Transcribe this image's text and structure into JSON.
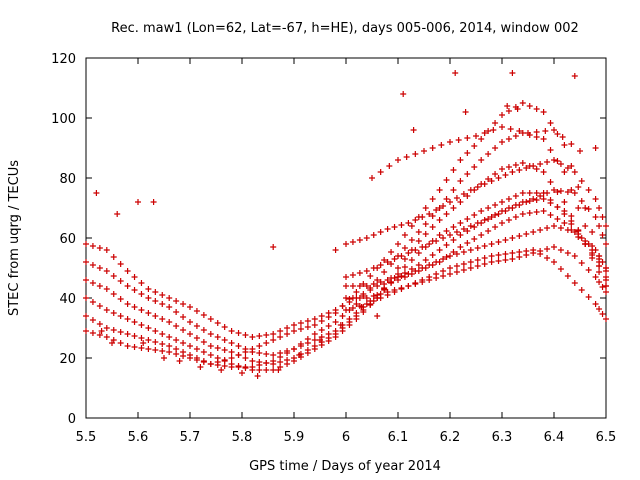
{
  "chart_data": {
    "type": "scatter",
    "title": "Rec. maw1 (Lon=62, Lat=-67, h=HE), days 005-006, 2014, window 002",
    "xlabel": "GPS time / Days of year 2014",
    "ylabel": "STEC from uqrg / TECUs",
    "xlim": [
      5.5,
      6.5
    ],
    "ylim": [
      0,
      120
    ],
    "xticks": [
      "5.5",
      "5.6",
      "5.7",
      "5.8",
      "5.9",
      "6",
      "6.1",
      "6.2",
      "6.3",
      "6.4",
      "6.5"
    ],
    "yticks": [
      "0",
      "20",
      "40",
      "60",
      "80",
      "100",
      "120"
    ],
    "marker": "+",
    "color": "#cc0000",
    "grid": false,
    "series": [
      {
        "tracks": [
          [
            [
              5.5,
              58
            ],
            [
              5.54,
              56
            ],
            [
              5.58,
              49
            ],
            [
              5.62,
              43
            ],
            [
              5.66,
              40
            ],
            [
              5.7,
              37
            ],
            [
              5.74,
              33
            ],
            [
              5.78,
              29
            ],
            [
              5.82,
              27
            ],
            [
              5.86,
              28
            ],
            [
              5.9,
              31
            ],
            [
              5.94,
              33
            ],
            [
              5.98,
              36
            ],
            [
              6.02,
              40
            ],
            [
              6.06,
              44
            ],
            [
              6.1,
              46
            ],
            [
              6.14,
              49
            ],
            [
              6.18,
              52
            ],
            [
              6.22,
              57
            ],
            [
              6.26,
              61
            ],
            [
              6.3,
              65
            ],
            [
              6.34,
              68
            ],
            [
              6.38,
              69
            ],
            [
              6.42,
              65
            ],
            [
              6.46,
              58
            ],
            [
              6.5,
              49
            ]
          ],
          [
            [
              5.5,
              52
            ],
            [
              5.54,
              49
            ],
            [
              5.58,
              44
            ],
            [
              5.62,
              40
            ],
            [
              5.66,
              37
            ],
            [
              5.7,
              32
            ],
            [
              5.74,
              28
            ],
            [
              5.78,
              25
            ],
            [
              5.82,
              22
            ],
            [
              5.86,
              21
            ],
            [
              5.9,
              23
            ],
            [
              5.94,
              26
            ],
            [
              5.98,
              29
            ],
            [
              6.02,
              35
            ],
            [
              6.06,
              41
            ],
            [
              6.1,
              47
            ],
            [
              6.14,
              51
            ],
            [
              6.18,
              56
            ],
            [
              6.22,
              61
            ],
            [
              6.26,
              65
            ],
            [
              6.3,
              69
            ],
            [
              6.34,
              72
            ],
            [
              6.38,
              73
            ],
            [
              6.42,
              69
            ],
            [
              6.46,
              59
            ],
            [
              6.5,
              50
            ]
          ],
          [
            [
              5.5,
              46
            ],
            [
              5.54,
              43
            ],
            [
              5.58,
              38
            ],
            [
              5.62,
              35
            ],
            [
              5.66,
              32
            ],
            [
              5.7,
              28
            ],
            [
              5.74,
              24
            ],
            [
              5.78,
              22
            ],
            [
              5.82,
              19
            ],
            [
              5.86,
              18
            ],
            [
              5.9,
              20
            ],
            [
              5.94,
              24
            ],
            [
              5.98,
              28
            ],
            [
              6.02,
              34
            ],
            [
              6.06,
              40
            ],
            [
              6.1,
              48
            ],
            [
              6.14,
              55
            ],
            [
              6.18,
              61
            ],
            [
              6.22,
              65
            ],
            [
              6.26,
              69
            ],
            [
              6.3,
              72
            ],
            [
              6.34,
              75
            ],
            [
              6.38,
              75
            ],
            [
              6.42,
              68
            ],
            [
              6.46,
              58
            ],
            [
              6.5,
              47
            ]
          ],
          [
            [
              5.5,
              40
            ],
            [
              5.54,
              36
            ],
            [
              5.58,
              33
            ],
            [
              5.62,
              30
            ],
            [
              5.66,
              27
            ],
            [
              5.7,
              24
            ],
            [
              5.74,
              21
            ],
            [
              5.78,
              18
            ],
            [
              5.82,
              16
            ],
            [
              5.86,
              16
            ],
            [
              5.9,
              19
            ],
            [
              5.94,
              23
            ],
            [
              5.98,
              27
            ],
            [
              6.02,
              33
            ],
            [
              6.06,
              40
            ],
            [
              6.1,
              50
            ],
            [
              6.14,
              59
            ],
            [
              6.18,
              66
            ],
            [
              6.22,
              72
            ],
            [
              6.26,
              78
            ],
            [
              6.3,
              83
            ],
            [
              6.34,
              85
            ],
            [
              6.38,
              82
            ],
            [
              6.42,
              72
            ],
            [
              6.46,
              58
            ],
            [
              6.5,
              44
            ]
          ],
          [
            [
              5.5,
              34
            ],
            [
              5.54,
              30
            ],
            [
              5.58,
              28
            ],
            [
              5.62,
              26
            ],
            [
              5.66,
              24
            ],
            [
              5.7,
              21
            ],
            [
              5.74,
              18
            ],
            [
              5.78,
              17
            ],
            [
              5.82,
              17
            ],
            [
              5.86,
              19
            ],
            [
              5.9,
              23
            ],
            [
              5.94,
              28
            ],
            [
              5.98,
              32
            ],
            [
              6.02,
              38
            ],
            [
              6.06,
              46
            ],
            [
              6.1,
              54
            ],
            [
              6.14,
              62
            ],
            [
              6.18,
              70
            ],
            [
              6.22,
              79
            ],
            [
              6.26,
              86
            ],
            [
              6.3,
              92
            ],
            [
              6.34,
              95
            ],
            [
              6.38,
              93
            ],
            [
              6.42,
              82
            ],
            [
              6.46,
              64
            ],
            [
              6.5,
              44
            ]
          ],
          [
            [
              5.5,
              29
            ],
            [
              5.54,
              27
            ],
            [
              5.58,
              24
            ],
            [
              5.62,
              23
            ],
            [
              5.66,
              22
            ],
            [
              5.7,
              20
            ],
            [
              5.74,
              18
            ],
            [
              5.78,
              20
            ],
            [
              5.82,
              23
            ],
            [
              5.86,
              26
            ],
            [
              5.9,
              29
            ],
            [
              5.94,
              31
            ],
            [
              5.98,
              35
            ],
            [
              6.02,
              42
            ],
            [
              6.06,
              50
            ],
            [
              6.1,
              58
            ],
            [
              6.14,
              67
            ],
            [
              6.18,
              76
            ],
            [
              6.22,
              86
            ],
            [
              6.26,
              93
            ],
            [
              6.3,
              101
            ],
            [
              6.34,
              105
            ],
            [
              6.38,
              102
            ],
            [
              6.42,
              91
            ],
            [
              6.46,
              70
            ],
            [
              6.5,
              46
            ]
          ],
          [
            [
              6.0,
              58
            ],
            [
              6.04,
              60
            ],
            [
              6.08,
              63
            ],
            [
              6.12,
              65
            ],
            [
              6.16,
              68
            ],
            [
              6.2,
              72
            ],
            [
              6.24,
              76
            ],
            [
              6.28,
              79
            ],
            [
              6.32,
              82
            ],
            [
              6.36,
              84
            ],
            [
              6.4,
              86
            ],
            [
              6.44,
              82
            ],
            [
              6.48,
              73
            ],
            [
              6.5,
              64
            ]
          ],
          [
            [
              6.0,
              47
            ],
            [
              6.04,
              49
            ],
            [
              6.08,
              52
            ],
            [
              6.12,
              55
            ],
            [
              6.16,
              58
            ],
            [
              6.2,
              61
            ],
            [
              6.24,
              64
            ],
            [
              6.28,
              67
            ],
            [
              6.32,
              70
            ],
            [
              6.36,
              73
            ],
            [
              6.4,
              76
            ],
            [
              6.44,
              75
            ],
            [
              6.48,
              67
            ],
            [
              6.5,
              58
            ]
          ],
          [
            [
              6.0,
              44
            ],
            [
              6.04,
              44
            ],
            [
              6.08,
              46
            ],
            [
              6.12,
              48
            ],
            [
              6.16,
              51
            ],
            [
              6.2,
              54
            ],
            [
              6.24,
              56
            ],
            [
              6.28,
              58
            ],
            [
              6.32,
              60
            ],
            [
              6.36,
              62
            ],
            [
              6.4,
              64
            ],
            [
              6.44,
              62
            ],
            [
              6.48,
              56
            ],
            [
              6.5,
              50
            ]
          ],
          [
            [
              6.0,
              40
            ],
            [
              6.04,
              40
            ],
            [
              6.08,
              42
            ],
            [
              6.12,
              44
            ],
            [
              6.16,
              46
            ],
            [
              6.2,
              48
            ],
            [
              6.24,
              50
            ],
            [
              6.28,
              52
            ],
            [
              6.32,
              53
            ],
            [
              6.36,
              55
            ],
            [
              6.4,
              57
            ],
            [
              6.44,
              54
            ],
            [
              6.48,
              47
            ],
            [
              6.5,
              42
            ]
          ],
          [
            [
              6.0,
              36
            ],
            [
              6.04,
              38
            ],
            [
              6.08,
              41
            ],
            [
              6.12,
              44
            ],
            [
              6.16,
              47
            ],
            [
              6.2,
              50
            ],
            [
              6.24,
              52
            ],
            [
              6.28,
              54
            ],
            [
              6.32,
              55
            ],
            [
              6.36,
              56
            ],
            [
              6.4,
              52
            ],
            [
              6.44,
              45
            ],
            [
              6.48,
              38
            ],
            [
              6.5,
              33
            ]
          ],
          [
            [
              6.05,
              80
            ],
            [
              6.1,
              86
            ],
            [
              6.15,
              89
            ],
            [
              6.2,
              92
            ],
            [
              6.25,
              94
            ],
            [
              6.3,
              97
            ],
            [
              6.35,
              95
            ],
            [
              6.4,
              96
            ],
            [
              6.45,
              89
            ]
          ]
        ],
        "extra_points": [
          [
            5.52,
            75
          ],
          [
            5.56,
            68
          ],
          [
            5.6,
            72
          ],
          [
            5.63,
            72
          ],
          [
            5.86,
            57
          ],
          [
            5.98,
            56
          ],
          [
            6.11,
            108
          ],
          [
            6.13,
            96
          ],
          [
            6.21,
            115
          ],
          [
            6.23,
            102
          ],
          [
            6.31,
            104
          ],
          [
            6.32,
            115
          ],
          [
            6.33,
            103
          ],
          [
            6.44,
            114
          ],
          [
            6.48,
            90
          ],
          [
            5.53,
            29
          ],
          [
            5.55,
            25
          ],
          [
            5.61,
            25
          ],
          [
            5.65,
            20
          ],
          [
            5.68,
            19
          ],
          [
            5.72,
            17
          ],
          [
            5.76,
            16
          ],
          [
            5.8,
            15
          ],
          [
            5.83,
            14
          ],
          [
            5.87,
            16
          ],
          [
            5.91,
            21
          ],
          [
            5.95,
            26
          ],
          [
            5.99,
            31
          ],
          [
            6.03,
            37
          ],
          [
            6.06,
            34
          ]
        ]
      }
    ]
  }
}
